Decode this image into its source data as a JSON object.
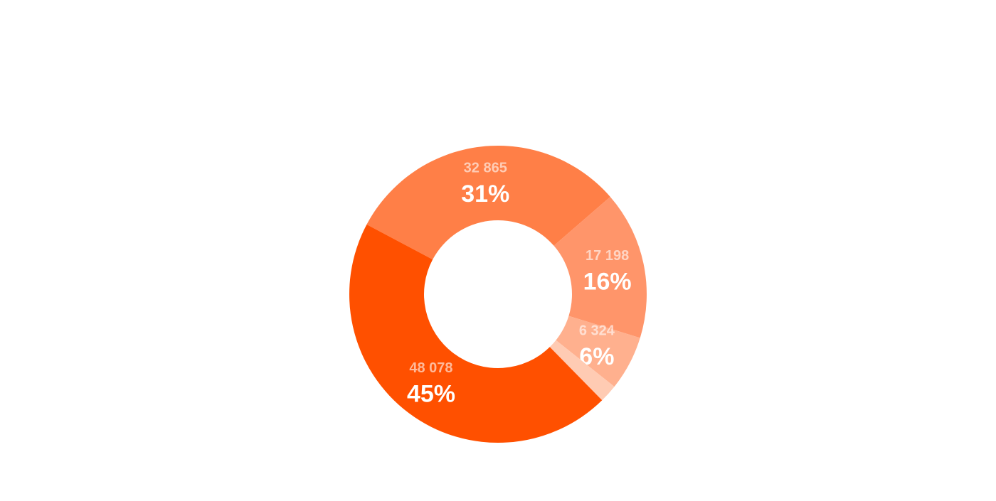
{
  "chart_data": {
    "type": "donut",
    "values": [
      32865,
      17198,
      6324,
      2100,
      48078
    ],
    "value_labels": [
      "32 865",
      "17 198",
      "6 324",
      null,
      "48 078"
    ],
    "percent_labels": [
      "31%",
      "16%",
      "6%",
      null,
      "45%"
    ],
    "colors": [
      "#ff7f47",
      "#ff956a",
      "#ffb08e",
      "#ffcbb3",
      "#ff5000"
    ]
  }
}
